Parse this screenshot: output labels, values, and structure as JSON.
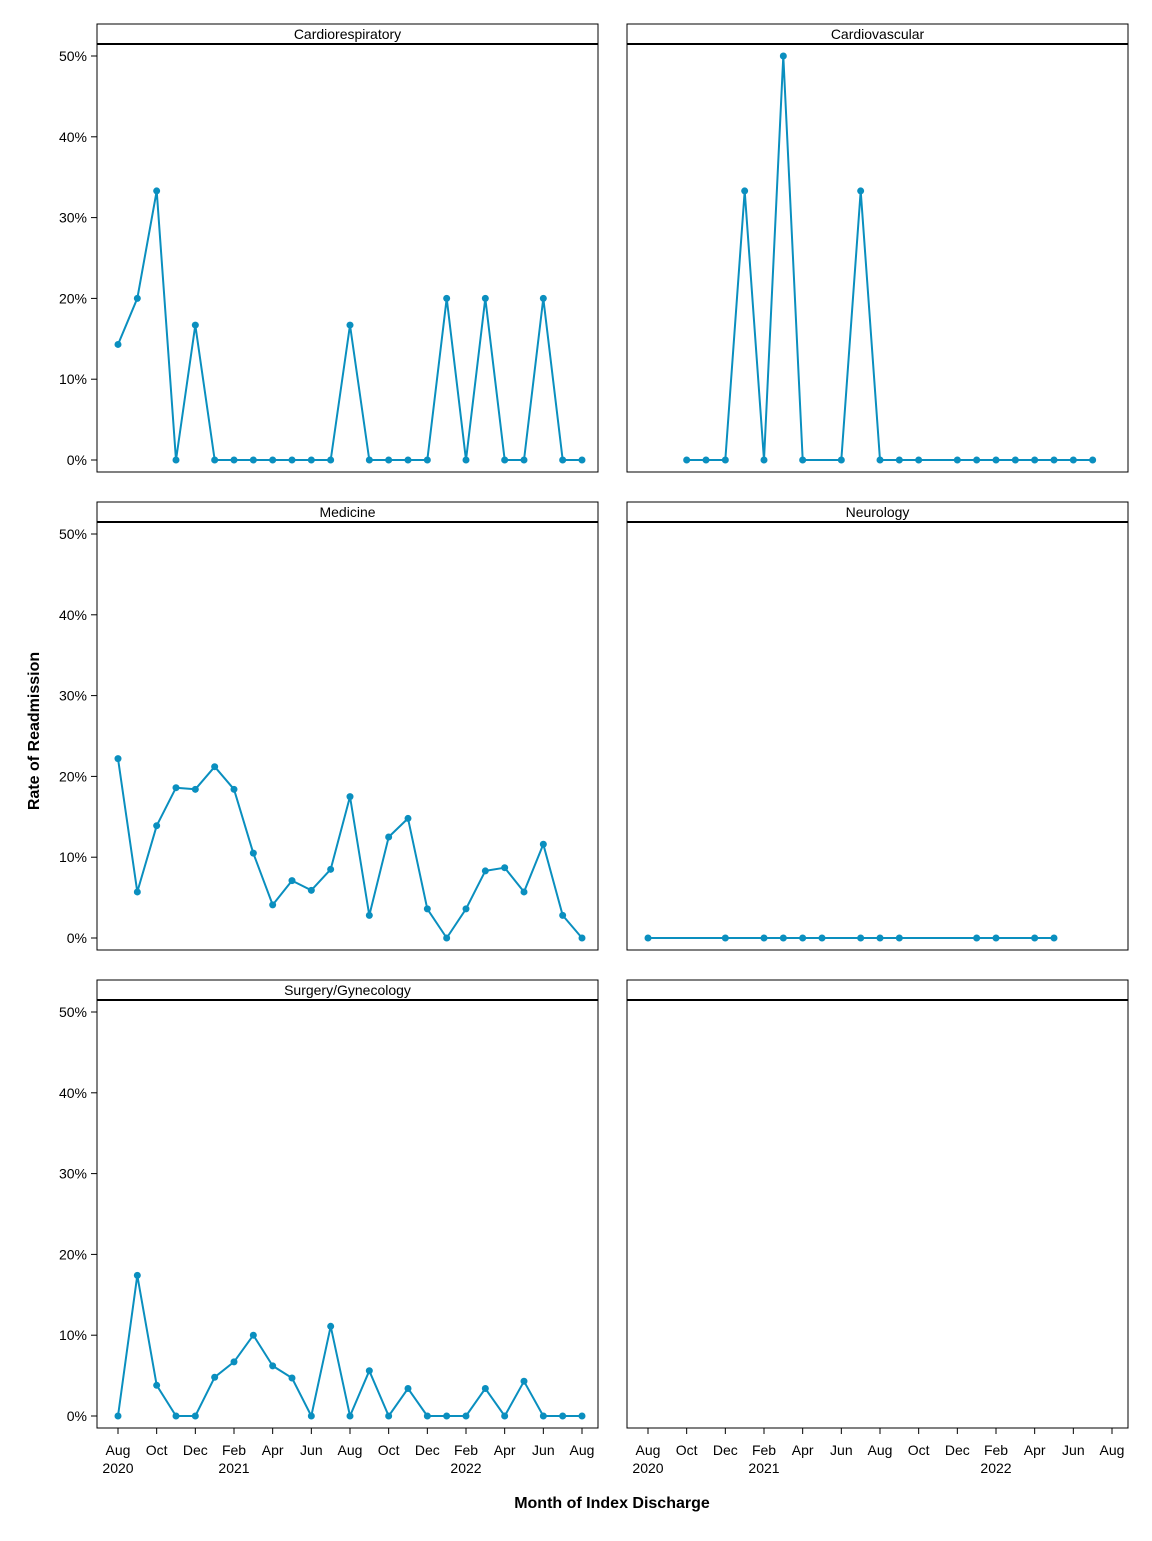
{
  "chart_data": {
    "type": "line",
    "layout": "facet-grid 3 rows x 2 columns",
    "xlabel": "Month of Index Discharge",
    "ylabel": "Rate of Readmission",
    "ylim": [
      0,
      0.5
    ],
    "y_ticks": [
      0,
      0.1,
      0.2,
      0.3,
      0.4,
      0.5
    ],
    "y_tick_labels": [
      "0%",
      "10%",
      "20%",
      "30%",
      "40%",
      "50%"
    ],
    "x_range": [
      "2020-08",
      "2022-08"
    ],
    "x_ticks": [
      "2020-08",
      "2020-10",
      "2020-12",
      "2021-02",
      "2021-04",
      "2021-06",
      "2021-08",
      "2021-10",
      "2021-12",
      "2022-02",
      "2022-04",
      "2022-06",
      "2022-08"
    ],
    "x_tick_labels": [
      "Aug\n2020",
      "Oct",
      "Dec",
      "Feb\n2021",
      "Apr",
      "Jun",
      "Aug",
      "Oct",
      "Dec",
      "Feb\n2022",
      "Apr",
      "Jun",
      "Aug"
    ],
    "series_color": "#0a8fbf",
    "grid": false,
    "panels": [
      {
        "name": "Cardiorespiratory",
        "x": [
          "2020-08",
          "2020-09",
          "2020-10",
          "2020-11",
          "2020-12",
          "2021-01",
          "2021-02",
          "2021-03",
          "2021-04",
          "2021-05",
          "2021-06",
          "2021-07",
          "2021-08",
          "2021-09",
          "2021-10",
          "2021-11",
          "2021-12",
          "2022-01",
          "2022-02",
          "2022-03",
          "2022-04",
          "2022-05",
          "2022-06",
          "2022-07",
          "2022-08"
        ],
        "values": [
          0.143,
          0.2,
          0.333,
          0,
          0.167,
          0,
          0,
          0,
          0,
          0,
          0,
          0,
          0.167,
          0,
          0,
          0,
          0,
          0.2,
          0,
          0.2,
          0,
          0,
          0.2,
          0,
          0
        ]
      },
      {
        "name": "Cardiovascular",
        "x": [
          "2020-10",
          "2020-11",
          "2020-12",
          "2021-01",
          "2021-02",
          "2021-03",
          "2021-04",
          "2021-06",
          "2021-07",
          "2021-08",
          "2021-09",
          "2021-10",
          "2021-12",
          "2022-01",
          "2022-02",
          "2022-03",
          "2022-04",
          "2022-05",
          "2022-06",
          "2022-07"
        ],
        "values": [
          0,
          0,
          0,
          0.333,
          0,
          0.5,
          0,
          0,
          0.333,
          0,
          0,
          0,
          0,
          0,
          0,
          0,
          0,
          0,
          0,
          0
        ]
      },
      {
        "name": "Medicine",
        "x": [
          "2020-08",
          "2020-09",
          "2020-10",
          "2020-11",
          "2020-12",
          "2021-01",
          "2021-02",
          "2021-03",
          "2021-04",
          "2021-05",
          "2021-06",
          "2021-07",
          "2021-08",
          "2021-09",
          "2021-10",
          "2021-11",
          "2021-12",
          "2022-01",
          "2022-02",
          "2022-03",
          "2022-04",
          "2022-05",
          "2022-06",
          "2022-07",
          "2022-08"
        ],
        "values": [
          0.222,
          0.057,
          0.139,
          0.186,
          0.184,
          0.212,
          0.184,
          0.105,
          0.041,
          0.071,
          0.059,
          0.085,
          0.175,
          0.028,
          0.125,
          0.148,
          0.036,
          0,
          0.036,
          0.083,
          0.087,
          0.057,
          0.116,
          0.028,
          0
        ]
      },
      {
        "name": "Neurology",
        "x": [
          "2020-08",
          "2020-12",
          "2021-02",
          "2021-03",
          "2021-04",
          "2021-05",
          "2021-07",
          "2021-08",
          "2021-09",
          "2022-01",
          "2022-02",
          "2022-04",
          "2022-05"
        ],
        "values": [
          0,
          0,
          0,
          0,
          0,
          0,
          0,
          0,
          0,
          0,
          0,
          0,
          0
        ]
      },
      {
        "name": "Surgery/Gynecology",
        "x": [
          "2020-08",
          "2020-09",
          "2020-10",
          "2020-11",
          "2020-12",
          "2021-01",
          "2021-02",
          "2021-03",
          "2021-04",
          "2021-05",
          "2021-06",
          "2021-07",
          "2021-08",
          "2021-09",
          "2021-10",
          "2021-11",
          "2021-12",
          "2022-01",
          "2022-02",
          "2022-03",
          "2022-04",
          "2022-05",
          "2022-06",
          "2022-07",
          "2022-08"
        ],
        "values": [
          0,
          0.174,
          0.038,
          0,
          0,
          0.048,
          0.067,
          0.1,
          0.062,
          0.047,
          0,
          0.111,
          0,
          0.056,
          0,
          0.034,
          0,
          0,
          0,
          0.034,
          0,
          0.043,
          0,
          0,
          0
        ]
      },
      {
        "name": "",
        "x": [],
        "values": []
      }
    ]
  }
}
